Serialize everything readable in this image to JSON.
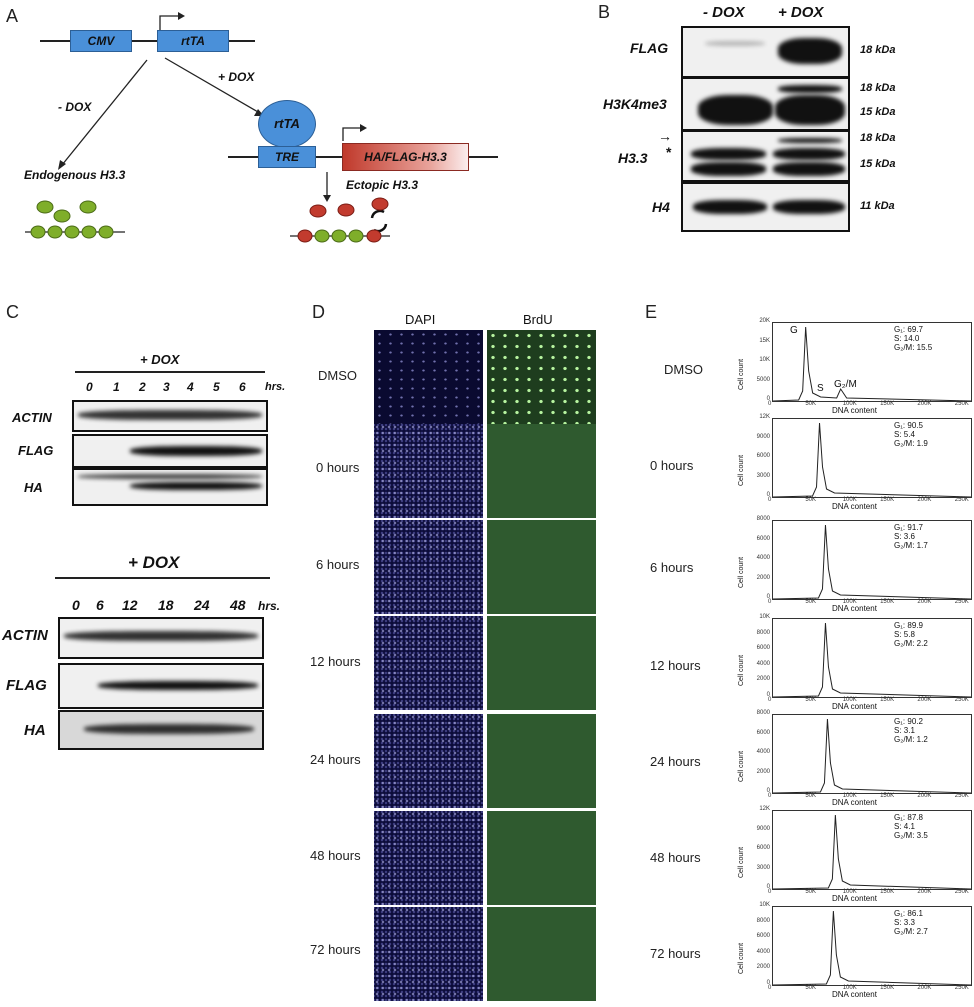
{
  "panels": {
    "a": "A",
    "b": "B",
    "c": "C",
    "d": "D",
    "e": "E"
  },
  "panelA": {
    "cmv": "CMV",
    "rttaBox": "rtTA",
    "minusDox": "- DOX",
    "plusDox": "+ DOX",
    "rttaCircle": "rtTA",
    "tre": "TRE",
    "haFlag": "HA/FLAG-H3.3",
    "endogenous": "Endogenous H3.3",
    "ectopic": "Ectopic H3.3"
  },
  "panelB": {
    "minusDox": "- DOX",
    "plusDox": "+ DOX",
    "rows": [
      {
        "label": "FLAG",
        "kda": [
          "18 kDa"
        ]
      },
      {
        "label": "H3K4me3",
        "kda": [
          "18 kDa",
          "15 kDa"
        ]
      },
      {
        "label": "H3.3",
        "kda": [
          "18 kDa",
          "15 kDa"
        ]
      },
      {
        "label": "H4",
        "kda": [
          "11 kDa"
        ]
      }
    ],
    "star": "*"
  },
  "panelC": {
    "top": {
      "dox": "+ DOX",
      "times": [
        "0",
        "1",
        "2",
        "3",
        "4",
        "5",
        "6"
      ],
      "unit": "hrs.",
      "rows": [
        "ACTIN",
        "FLAG",
        "HA"
      ]
    },
    "bottom": {
      "dox": "+ DOX",
      "times": [
        "0",
        "6",
        "12",
        "18",
        "24",
        "48"
      ],
      "unit": "hrs.",
      "rows": [
        "ACTIN",
        "FLAG",
        "HA"
      ]
    }
  },
  "panelD": {
    "cols": [
      "DAPI",
      "BrdU"
    ],
    "rows": [
      "DMSO",
      "0 hours",
      "6 hours",
      "12 hours",
      "24 hours",
      "48 hours",
      "72 hours"
    ]
  },
  "panelE": {
    "ylabel": "Cell count",
    "xlabel": "DNA content",
    "xticks": [
      "0",
      "50K",
      "100K",
      "150K",
      "200K",
      "250K"
    ],
    "rows": [
      {
        "label": "DMSO",
        "g1": "G₁: 69.7",
        "s": "S: 14.0",
        "g2m": "G₂/M: 15.5",
        "yticks": [
          "20K",
          "15K",
          "10K",
          "5000",
          "0"
        ],
        "peak": 0.17
      },
      {
        "label": "0 hours",
        "g1": "G₁: 90.5",
        "s": "S: 5.4",
        "g2m": "G₂/M: 1.9",
        "yticks": [
          "12K",
          "9000",
          "6000",
          "3000",
          "0"
        ],
        "peak": 0.24
      },
      {
        "label": "6 hours",
        "g1": "G₁: 91.7",
        "s": "S: 3.6",
        "g2m": "G₂/M: 1.7",
        "yticks": [
          "8000",
          "6000",
          "4000",
          "2000",
          "0"
        ],
        "peak": 0.27
      },
      {
        "label": "12 hours",
        "g1": "G₁: 89.9",
        "s": "S: 5.8",
        "g2m": "G₂/M: 2.2",
        "yticks": [
          "10K",
          "8000",
          "6000",
          "4000",
          "2000",
          "0"
        ],
        "peak": 0.27
      },
      {
        "label": "24 hours",
        "g1": "G₁: 90.2",
        "s": "S: 3.1",
        "g2m": "G₂/M: 1.2",
        "yticks": [
          "8000",
          "6000",
          "4000",
          "2000",
          "0"
        ],
        "peak": 0.28
      },
      {
        "label": "48 hours",
        "g1": "G₁: 87.8",
        "s": "S: 4.1",
        "g2m": "G₂/M: 3.5",
        "yticks": [
          "12K",
          "9000",
          "6000",
          "3000",
          "0"
        ],
        "peak": 0.32
      },
      {
        "label": "72 hours",
        "g1": "G₁: 86.1",
        "s": "S: 3.3",
        "g2m": "G₂/M: 2.7",
        "yticks": [
          "10K",
          "8000",
          "6000",
          "4000",
          "2000",
          "0"
        ],
        "peak": 0.31
      }
    ],
    "dmsoPeaks": {
      "g1": "G",
      "s": "S",
      "g2m": "G₂/M"
    }
  }
}
